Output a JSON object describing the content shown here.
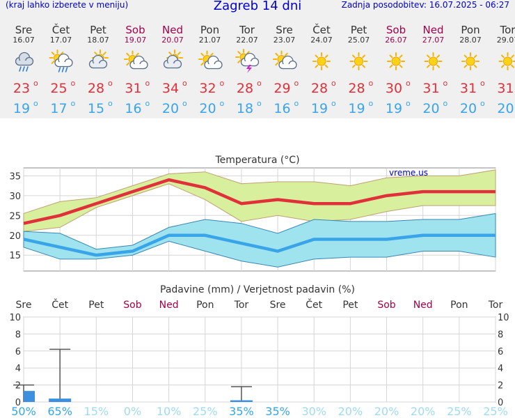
{
  "header": {
    "left_note": "(kraj lahko izberete v meniju)",
    "title": "Zagreb 14 dni",
    "update": "Zadnja posodobitev: 16.07.2025 - 06:27"
  },
  "forecast": {
    "days": [
      {
        "name": "Sre",
        "date": "16.07",
        "weekend": false,
        "icon": "rain-cloud-icon",
        "tmax": "23",
        "tmin": "19"
      },
      {
        "name": "Čet",
        "date": "17.07",
        "weekend": false,
        "icon": "sun-rain-icon",
        "tmax": "25",
        "tmin": "17"
      },
      {
        "name": "Pet",
        "date": "18.07",
        "weekend": false,
        "icon": "partly-cloudy-icon",
        "tmax": "28",
        "tmin": "15"
      },
      {
        "name": "Sob",
        "date": "19.07",
        "weekend": true,
        "icon": "sun-cloud-icon",
        "tmax": "31",
        "tmin": "16"
      },
      {
        "name": "Ned",
        "date": "20.07",
        "weekend": true,
        "icon": "partly-cloudy-icon",
        "tmax": "34",
        "tmin": "20"
      },
      {
        "name": "Pon",
        "date": "21.07",
        "weekend": false,
        "icon": "sun-cloud-icon",
        "tmax": "32",
        "tmin": "20"
      },
      {
        "name": "Tor",
        "date": "22.07",
        "weekend": false,
        "icon": "thunderstorm-icon",
        "tmax": "28",
        "tmin": "18"
      },
      {
        "name": "Sre",
        "date": "23.07",
        "weekend": false,
        "icon": "sun-cloud-icon",
        "tmax": "29",
        "tmin": "16"
      },
      {
        "name": "Čet",
        "date": "24.07",
        "weekend": false,
        "icon": "sun-icon",
        "tmax": "28",
        "tmin": "19"
      },
      {
        "name": "Pet",
        "date": "25.07",
        "weekend": false,
        "icon": "sun-icon",
        "tmax": "28",
        "tmin": "19"
      },
      {
        "name": "Sob",
        "date": "26.07",
        "weekend": true,
        "icon": "sun-icon",
        "tmax": "30",
        "tmin": "19"
      },
      {
        "name": "Ned",
        "date": "27.07",
        "weekend": true,
        "icon": "sun-icon",
        "tmax": "31",
        "tmin": "20"
      },
      {
        "name": "Pon",
        "date": "28.07",
        "weekend": false,
        "icon": "sun-icon",
        "tmax": "31",
        "tmin": "20"
      },
      {
        "name": "Tor",
        "date": "29.07",
        "weekend": false,
        "icon": "sun-icon",
        "tmax": "31",
        "tmin": "20"
      }
    ],
    "degree_symbol": "o"
  },
  "colors": {
    "tmax": "#e0303a",
    "tmin": "#39a5e8",
    "weekday": "#333333",
    "weekend": "#a3004a",
    "max_band": "#d8ef9e",
    "min_band": "#9fe3ef",
    "precip_bar": "#3c90e0",
    "prob": "#33a7e3",
    "prob_low": "#9edcef"
  },
  "chart_data": [
    {
      "type": "line",
      "title": "Temperatura (°C)",
      "watermark": "vreme.us",
      "x": [
        "Sre",
        "Čet",
        "Pet",
        "Sob",
        "Ned",
        "Pon",
        "Tor",
        "Sre",
        "Čet",
        "Pet",
        "Sob",
        "Ned",
        "Pon",
        "Tor"
      ],
      "ylim": [
        11,
        37
      ],
      "yticks": [
        15,
        20,
        25,
        30,
        35
      ],
      "grid": true,
      "series": [
        {
          "values": [
            23,
            25,
            28,
            31,
            34,
            32,
            28,
            29,
            28,
            28,
            30,
            31,
            31,
            31
          ],
          "band_low": [
            21,
            22,
            27,
            30,
            33,
            29,
            23.5,
            25,
            23.5,
            24,
            26,
            27.5,
            27.5,
            27.5
          ],
          "band_high": [
            25.5,
            28.5,
            29.5,
            32.5,
            35.5,
            36,
            33,
            33.5,
            33.5,
            32.5,
            34.5,
            35,
            35,
            36.5
          ]
        },
        {
          "values": [
            19,
            17,
            15,
            16,
            20,
            20,
            18,
            16,
            19,
            19,
            19,
            20,
            20,
            20
          ],
          "band_low": [
            17,
            14,
            14,
            15,
            18.5,
            16,
            13.5,
            12,
            14,
            14.5,
            14.5,
            16,
            16,
            14.5
          ],
          "band_high": [
            21,
            20.5,
            16.5,
            17.5,
            22,
            24,
            23,
            20.5,
            24,
            23.5,
            23.5,
            24,
            24,
            25.5
          ]
        }
      ]
    },
    {
      "type": "bar",
      "title": "Padavine (mm) / Verjetnost padavin (%)",
      "categories": [
        "Sre",
        "Čet",
        "Pet",
        "Sob",
        "Ned",
        "Pon",
        "Tor",
        "Sre",
        "Čet",
        "Pet",
        "Sob",
        "Ned",
        "Pon",
        "Tor"
      ],
      "values": [
        1.3,
        0.4,
        0,
        0,
        0,
        0,
        0.2,
        0,
        0,
        0,
        0,
        0,
        0,
        0
      ],
      "error_high": [
        2,
        6.2,
        null,
        null,
        null,
        null,
        1.8,
        null,
        null,
        null,
        null,
        null,
        null,
        null
      ],
      "probability": [
        "50%",
        "65%",
        "15%",
        "0%",
        "10%",
        "25%",
        "35%",
        "35%",
        "30%",
        "20%",
        "20%",
        "20%",
        "25%",
        "25%"
      ],
      "ylim": [
        0,
        10
      ],
      "yticks": [
        0,
        2,
        4,
        6,
        8,
        10
      ],
      "grid": true
    }
  ]
}
